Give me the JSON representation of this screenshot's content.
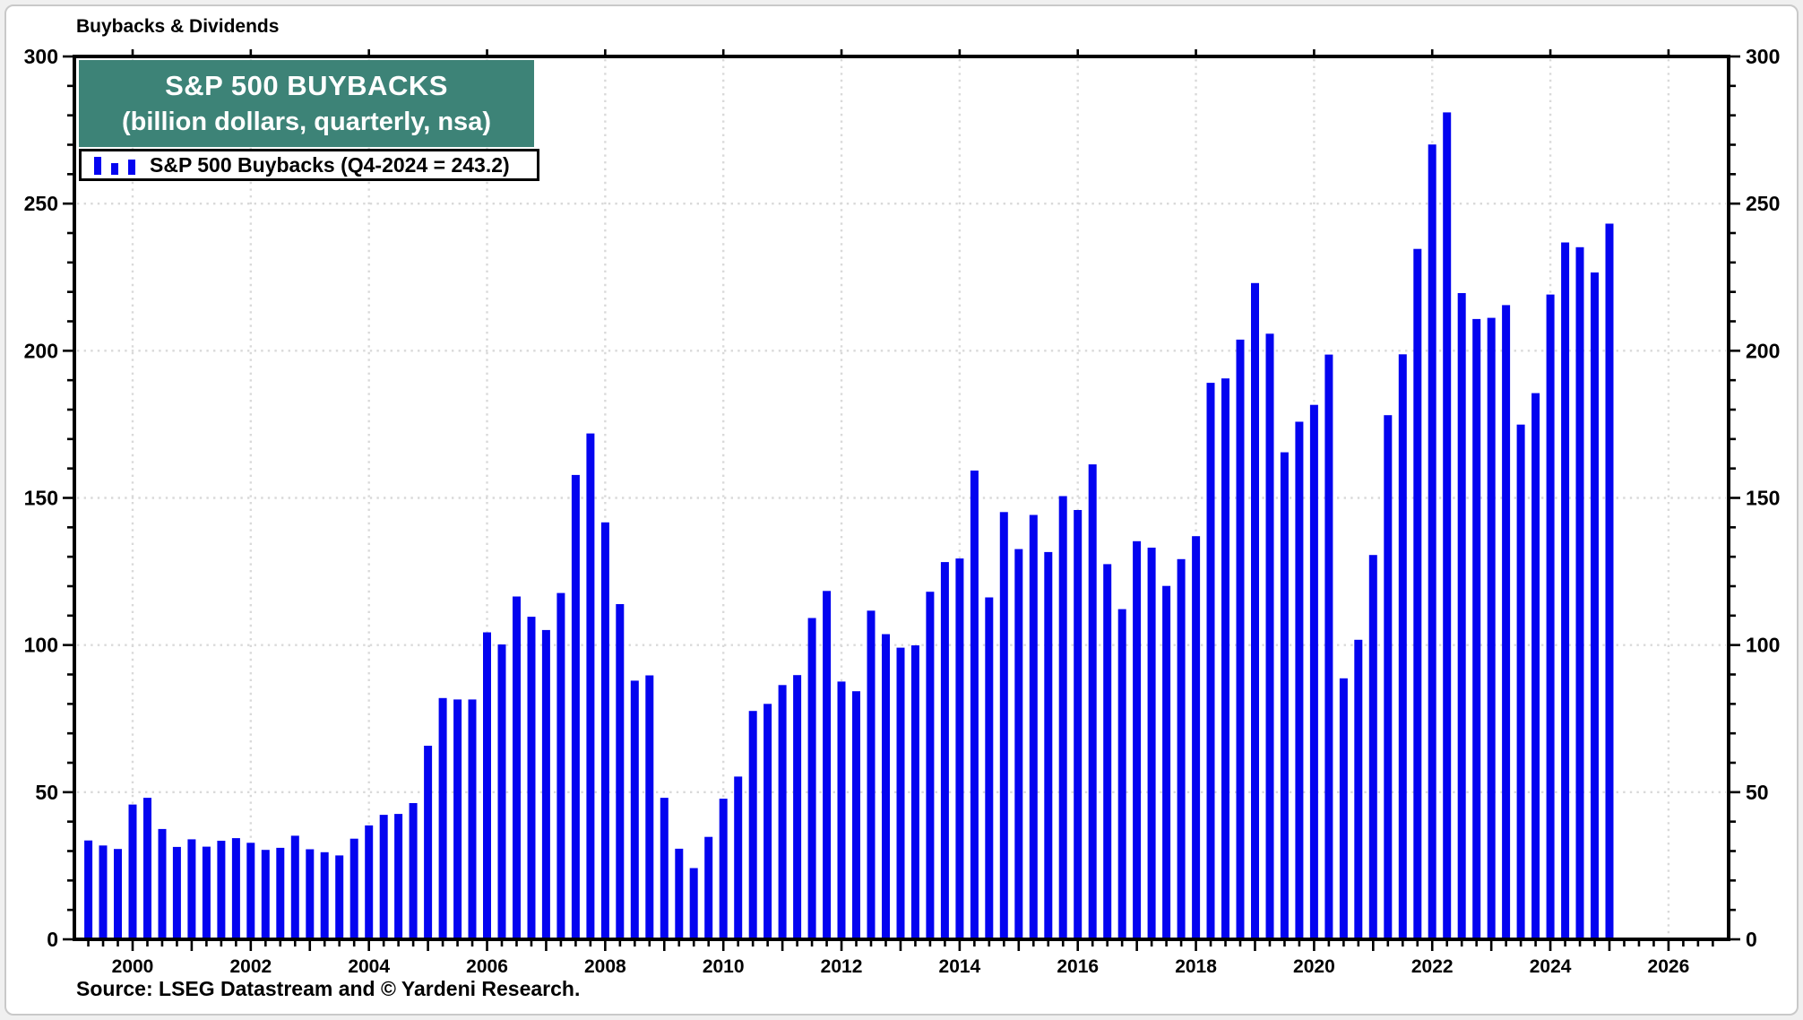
{
  "window": {
    "header": "Buybacks & Dividends",
    "source": "Source: LSEG Datastream and © Yardeni Research."
  },
  "title_box": {
    "line1": "S&P 500 BUYBACKS",
    "line2": "(billion dollars, quarterly, nsa)"
  },
  "legend": {
    "label": "S&P 500 Buybacks (Q4-2024 = 243.2)"
  },
  "colors": {
    "bar": "#0404f0",
    "title_bg": "#3d8377",
    "grid": "#d9d9d9",
    "axis": "#000000"
  },
  "chart_data": {
    "type": "bar",
    "title": "S&P 500 BUYBACKS (billion dollars, quarterly, nsa)",
    "ylabel": "billion dollars",
    "ylim": [
      0,
      300
    ],
    "y_ticks": [
      0,
      50,
      100,
      150,
      200,
      250,
      300
    ],
    "y_minor_step": 10,
    "x_tick_years": [
      2000,
      2002,
      2004,
      2006,
      2008,
      2010,
      2012,
      2014,
      2016,
      2018,
      2020,
      2022,
      2024,
      2026
    ],
    "x_domain_years": [
      1999.01,
      2027.02
    ],
    "grid": true,
    "legend_position": "top-left",
    "series": [
      {
        "name": "S&P 500 Buybacks",
        "start": "1999-Q1",
        "frequency": "quarterly",
        "last_point_label": "Q4-2024 = 243.2",
        "values": [
          33.6,
          31.9,
          30.7,
          45.8,
          48.1,
          37.5,
          31.4,
          34.0,
          31.5,
          33.5,
          34.4,
          32.8,
          30.4,
          31.1,
          35.2,
          30.6,
          29.6,
          28.5,
          34.2,
          38.7,
          42.3,
          42.6,
          46.3,
          65.8,
          82.0,
          81.5,
          81.5,
          104.3,
          100.2,
          116.5,
          109.6,
          105.1,
          117.7,
          157.8,
          171.9,
          141.7,
          113.9,
          87.9,
          89.7,
          48.1,
          30.8,
          24.2,
          34.8,
          47.8,
          55.3,
          77.6,
          80.0,
          86.4,
          89.8,
          109.2,
          118.4,
          87.6,
          84.3,
          111.7,
          103.7,
          99.1,
          99.9,
          118.1,
          128.2,
          129.4,
          159.3,
          116.2,
          145.2,
          132.6,
          144.2,
          131.6,
          150.6,
          145.9,
          161.4,
          127.5,
          112.2,
          135.3,
          133.1,
          120.1,
          129.2,
          137.0,
          189.1,
          190.6,
          203.8,
          223.0,
          205.8,
          165.5,
          175.9,
          181.6,
          198.7,
          88.7,
          101.8,
          130.6,
          178.1,
          198.8,
          234.6,
          270.1,
          281.0,
          219.6,
          210.8,
          211.2,
          215.5,
          174.9,
          185.6,
          219.1,
          236.8,
          235.2,
          226.6,
          243.2
        ]
      }
    ]
  }
}
